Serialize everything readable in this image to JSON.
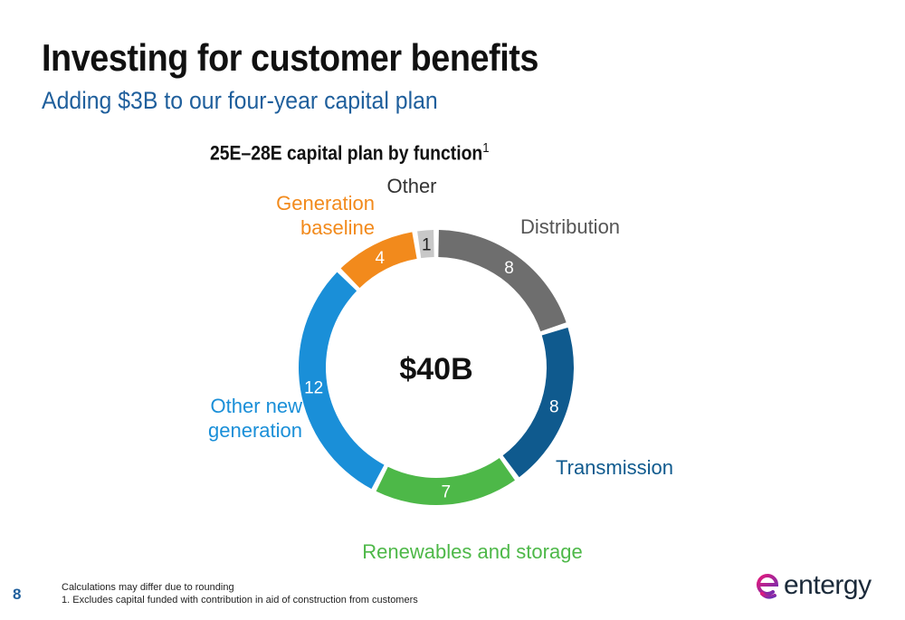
{
  "slide": {
    "title": "Investing for customer benefits",
    "subtitle": "Adding $3B to our four-year capital plan",
    "page_number": "8",
    "footnotes": [
      "Calculations may differ due to rounding",
      "1. Excludes capital funded with contribution in aid of construction from customers"
    ],
    "logo_text": "entergy",
    "logo_colors": [
      "#e4197b",
      "#6b2fb3"
    ]
  },
  "chart_data": {
    "type": "pie",
    "title": "25E–28E capital plan by function",
    "title_footnote_marker": "1",
    "center_label": "$40B",
    "unit": "$B",
    "slices": [
      {
        "label": "Distribution",
        "value": 8,
        "value_label": "8",
        "color": "#6e6e6e",
        "label_color": "#555555"
      },
      {
        "label": "Transmission",
        "value": 8,
        "value_label": "8",
        "color": "#0f5a8e",
        "label_color": "#0f5a8e"
      },
      {
        "label": "Renewables and storage",
        "value": 7,
        "value_label": "7",
        "color": "#4db848",
        "label_color": "#4db848"
      },
      {
        "label": "Other new\ngeneration",
        "value": 12,
        "value_label": "12",
        "color": "#1a8fd8",
        "label_color": "#1a8fd8"
      },
      {
        "label": "Generation\nbaseline",
        "value": 4,
        "value_label": "4",
        "color": "#f28a1c",
        "label_color": "#f28a1c"
      },
      {
        "label": "Other",
        "value": 1,
        "value_label": "1",
        "color": "#c8c8c8",
        "label_color": "#333333"
      }
    ]
  }
}
